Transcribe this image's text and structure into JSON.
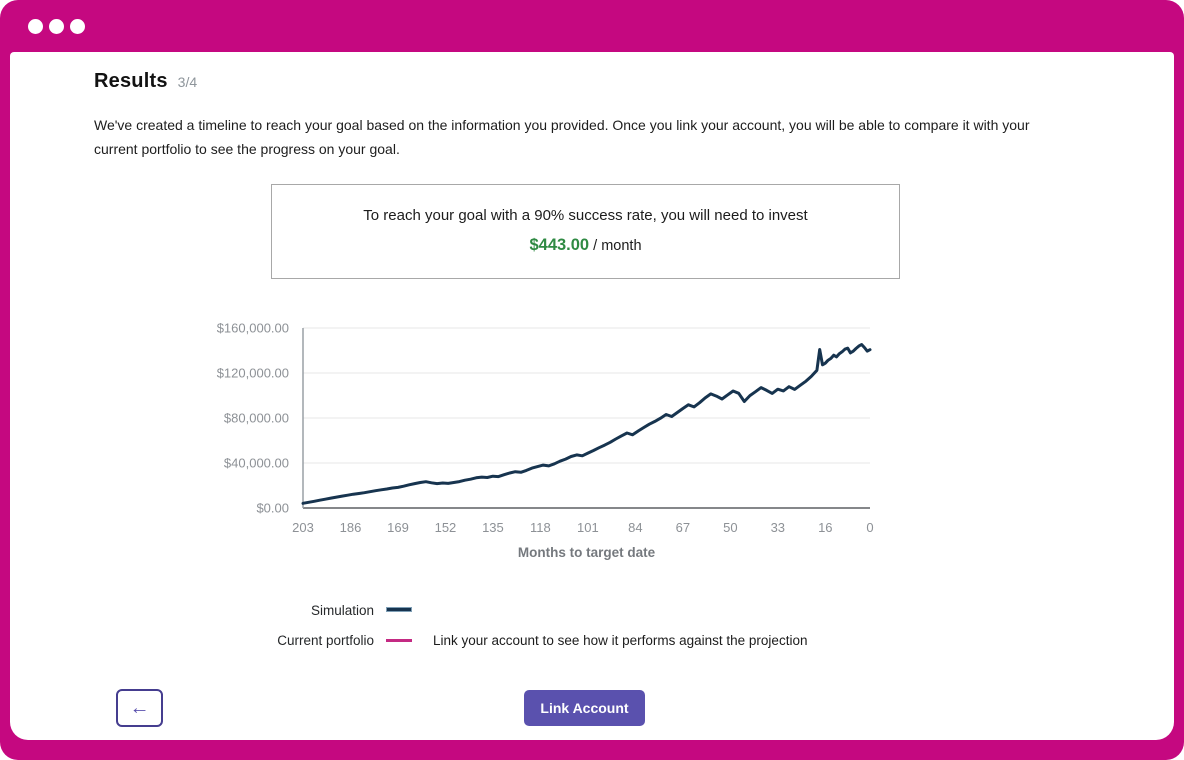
{
  "header": {
    "title": "Results",
    "step": "3/4"
  },
  "intro": {
    "text": "We've created a timeline to reach your goal based on the information you provided. Once you link your account, you will be able to compare it with your current portfolio to see the progress on your goal."
  },
  "invest_box": {
    "line1": "To reach your goal with a 90% success rate, you will need to invest",
    "amount": "$443.00",
    "per": "/ month"
  },
  "legend": {
    "simulation_label": "Simulation",
    "current_label": "Current portfolio",
    "current_note": "Link your account to see how it performs against the projection"
  },
  "footer": {
    "back_icon": "←",
    "link_account_label": "Link Account"
  },
  "colors": {
    "frame": "#c50880",
    "simulation_line": "#17344f",
    "current_portfolio_line": "#c42a83",
    "amount_green": "#2f8a43",
    "button_purple": "#5a51ae",
    "back_border_purple": "#453d8f",
    "gridline": "#e7e7e7",
    "axis_line": "#9aa0a6",
    "axis_bottom": "#85878a",
    "tick_text": "#8d9196",
    "axis_label_text": "#75797e"
  },
  "chart_data": {
    "type": "line",
    "title": "",
    "xlabel": "Months to target date",
    "ylabel": "",
    "x_ticks": [
      203,
      186,
      169,
      152,
      135,
      118,
      101,
      84,
      67,
      50,
      33,
      16,
      0
    ],
    "y_tick_labels": [
      "$160,000.00",
      "$120,000.00",
      "$80,000.00",
      "$40,000.00",
      "$0.00"
    ],
    "y_tick_values": [
      160000,
      120000,
      80000,
      40000,
      0
    ],
    "xlim": [
      203,
      0
    ],
    "ylim": [
      0,
      160000
    ],
    "x_reversed": true,
    "grid": true,
    "legend_position": "below",
    "series": [
      {
        "name": "Simulation",
        "color": "#17344f",
        "months": [
          203,
          201,
          199,
          197,
          195,
          193,
          191,
          189,
          187,
          185,
          183,
          181,
          179,
          177,
          175,
          173,
          171,
          169,
          167,
          165,
          163,
          161,
          159,
          157,
          155,
          153,
          151,
          149,
          147,
          145,
          143,
          141,
          139,
          137,
          135,
          133,
          131,
          129,
          127,
          125,
          123,
          121,
          119,
          117,
          115,
          113,
          111,
          109,
          107,
          105,
          103,
          101,
          99,
          97,
          95,
          93,
          91,
          89,
          87,
          85,
          83,
          81,
          79,
          77,
          75,
          73,
          71,
          69,
          67,
          65,
          63,
          61,
          59,
          57,
          55,
          53,
          51,
          49,
          47,
          45,
          43,
          41,
          39,
          37,
          35,
          33,
          31,
          29,
          27,
          25,
          23,
          21,
          19,
          18,
          17,
          16,
          15,
          14,
          13,
          12,
          11,
          10,
          9,
          8,
          7,
          6,
          5,
          4,
          3,
          2,
          1,
          0
        ],
        "values": [
          4200,
          5100,
          6000,
          6900,
          7800,
          8800,
          9700,
          10600,
          11400,
          12300,
          12900,
          13600,
          14500,
          15400,
          16200,
          16900,
          17800,
          18300,
          19400,
          20600,
          21700,
          22700,
          23400,
          22400,
          21700,
          22200,
          21900,
          22700,
          23500,
          24700,
          25600,
          26800,
          27500,
          27100,
          28300,
          27900,
          29600,
          31100,
          32300,
          31700,
          33400,
          35500,
          36800,
          38100,
          37400,
          39300,
          41600,
          43500,
          45800,
          47200,
          46400,
          48800,
          51100,
          53600,
          55900,
          58400,
          61300,
          64100,
          66700,
          65100,
          68400,
          71600,
          74500,
          77000,
          79800,
          83100,
          81300,
          84900,
          88400,
          91700,
          89900,
          93600,
          97900,
          101400,
          99500,
          96900,
          100500,
          104000,
          102000,
          94700,
          99900,
          103400,
          107000,
          104500,
          101900,
          105600,
          104100,
          107800,
          105400,
          109100,
          112600,
          117000,
          122400,
          140900,
          127300,
          128700,
          131400,
          133000,
          135800,
          134300,
          137200,
          138800,
          141200,
          142100,
          137900,
          139400,
          141800,
          143900,
          145300,
          142700,
          139500,
          140700
        ]
      },
      {
        "name": "Current portfolio",
        "color": "#c42a83",
        "months": [],
        "values": []
      }
    ]
  }
}
